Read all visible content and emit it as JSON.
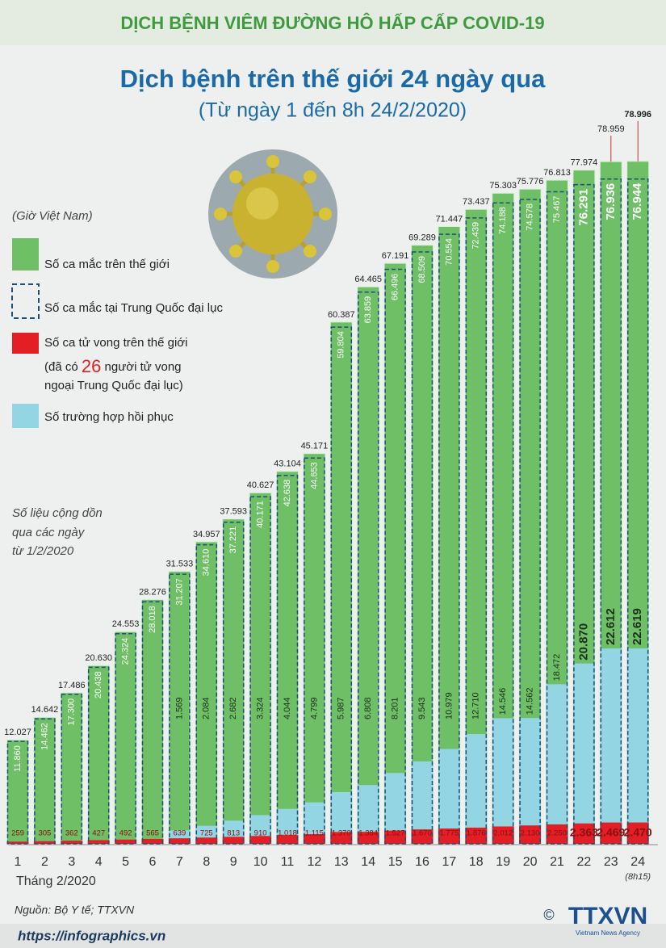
{
  "header": "DỊCH BỆNH VIÊM ĐƯỜNG HÔ HẤP CẤP COVID-19",
  "chart_data": {
    "type": "bar",
    "title": "Dịch bệnh trên thế giới 24 ngày qua",
    "subtitle": "(Từ ngày 1 đến 8h 24/2/2020)",
    "legend_title": "(Giờ Việt Nam)",
    "categories": [
      "1",
      "2",
      "3",
      "4",
      "5",
      "6",
      "7",
      "8",
      "9",
      "10",
      "11",
      "12",
      "13",
      "14",
      "15",
      "16",
      "17",
      "18",
      "19",
      "20",
      "21",
      "22",
      "23",
      "24"
    ],
    "last_category_note": "(8h15)",
    "x_label": "Tháng 2/2020",
    "series": [
      {
        "name": "Số ca mắc trên thế giới",
        "color": "#6fbf67",
        "values": [
          12027,
          14642,
          17486,
          20630,
          24553,
          28276,
          31533,
          34957,
          37593,
          40627,
          43104,
          45171,
          60387,
          64465,
          67191,
          69289,
          71447,
          73437,
          75303,
          75776,
          76813,
          77974,
          78959,
          78996
        ],
        "value_labels": [
          "12.027",
          "14.642",
          "17.486",
          "20.630",
          "24.553",
          "28.276",
          "31.533",
          "34.957",
          "37.593",
          "40.627",
          "43.104",
          "45.171",
          "60.387",
          "64.465",
          "67.191",
          "69.289",
          "71.447",
          "73.437",
          "75.303",
          "75.776",
          "76.813",
          "77.974",
          "78.959",
          "78.996"
        ]
      },
      {
        "name": "Số ca mắc tại Trung Quốc đại lục",
        "color": "#1f4e79",
        "values": [
          11860,
          14462,
          17300,
          20438,
          24324,
          28018,
          31207,
          34610,
          37221,
          40171,
          42638,
          44653,
          59804,
          63859,
          66496,
          68509,
          70554,
          72439,
          74188,
          74578,
          75467,
          76291,
          76936,
          76944
        ],
        "value_labels": [
          "11.860",
          "14.462",
          "17.300",
          "20.438",
          "24.324",
          "28.018",
          "31.207",
          "34.610",
          "37.221",
          "40.171",
          "42.638",
          "44.653",
          "59.804",
          "63.859",
          "66.496",
          "68.509",
          "70.554",
          "72.439",
          "74.188",
          "74.578",
          "75.467",
          "76.291",
          "76.936",
          "76.944"
        ]
      },
      {
        "name": "Số ca tử vong trên thế giới",
        "color": "#e31e24",
        "values": [
          259,
          305,
          362,
          427,
          492,
          565,
          639,
          725,
          813,
          910,
          1018,
          1115,
          1370,
          1384,
          1527,
          1670,
          1775,
          1876,
          2012,
          2130,
          2250,
          2363,
          2469,
          2470
        ],
        "value_labels": [
          "259",
          "305",
          "362",
          "427",
          "492",
          "565",
          "639",
          "725",
          "813",
          "910",
          "1.018",
          "1.115",
          "1.370",
          "1.384",
          "1.527",
          "1.670",
          "1.775",
          "1.876",
          "2.012",
          "2.130",
          "2.250",
          "2.363",
          "2.469",
          "2.470"
        ]
      },
      {
        "name": "Số trường hợp hồi phục",
        "color": "#93d5e2",
        "values": [
          null,
          null,
          null,
          null,
          null,
          null,
          1569,
          2084,
          2682,
          3324,
          4044,
          4799,
          5987,
          6808,
          8201,
          9543,
          10979,
          12710,
          14546,
          14562,
          18472,
          20870,
          22612,
          22619
        ],
        "value_labels": [
          null,
          null,
          null,
          null,
          null,
          null,
          "1.569",
          "2.084",
          "2.682",
          "3.324",
          "4.044",
          "4.799",
          "5.987",
          "6.808",
          "8.201",
          "9.543",
          "10.979",
          "12.710",
          "14.546",
          "14.562",
          "18.472",
          "20.870",
          "22.612",
          "22.619"
        ]
      }
    ],
    "legend_note": {
      "before": "(đã có",
      "number": 26,
      "after": "người tử vong",
      "line2": "ngoại Trung Quốc đại lục)"
    },
    "note": [
      "Số liệu cộng dồn",
      "qua các ngày",
      "từ 1/2/2020"
    ],
    "source": "Nguồn: Bộ Y tế; TTXVN"
  },
  "footer": {
    "website": "https://infographics.vn",
    "copyright": "©",
    "logo": "TTXVN",
    "logo_sub": "Vietnam News Agency"
  }
}
